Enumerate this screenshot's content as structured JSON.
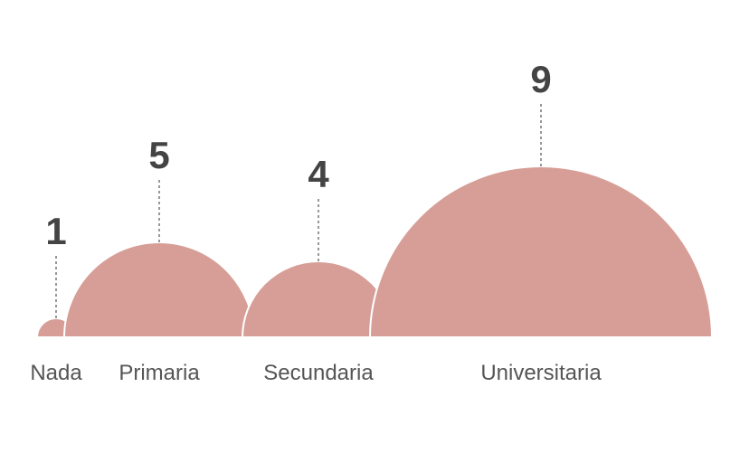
{
  "chart_data": {
    "type": "semicircle",
    "categories": [
      "Nada",
      "Primaria",
      "Secundaria",
      "Universitaria"
    ],
    "values": [
      1,
      5,
      4,
      9
    ],
    "color": "#d69e97"
  }
}
